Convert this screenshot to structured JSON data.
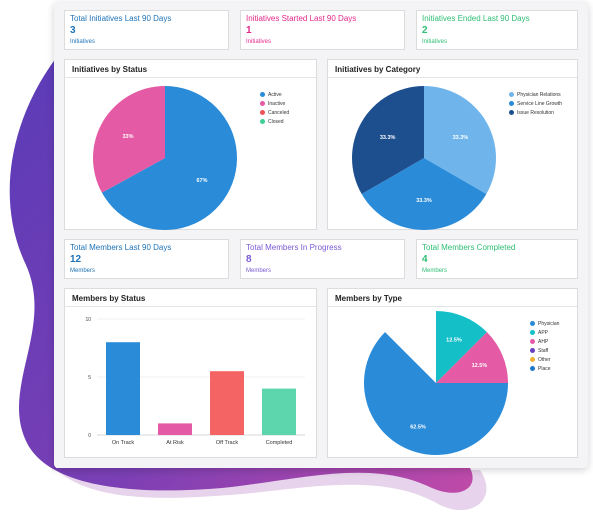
{
  "kpis_top": [
    {
      "title": "Total Initiatives Last 90 Days",
      "value": "3",
      "sub": "Initiatives",
      "color": "#1f73b7"
    },
    {
      "title": "Initiatives Started Last 90 Days",
      "value": "1",
      "sub": "Initiatives",
      "color": "#e3278a"
    },
    {
      "title": "Initiatives Ended Last 90 Days",
      "value": "2",
      "sub": "Initiatives",
      "color": "#2ebd74"
    }
  ],
  "kpis_mid": [
    {
      "title": "Total Members Last 90 Days",
      "value": "12",
      "sub": "Members",
      "color": "#1f73b7"
    },
    {
      "title": "Total Members In Progress",
      "value": "8",
      "sub": "Members",
      "color": "#7a5bd6"
    },
    {
      "title": "Total Members Completed",
      "value": "4",
      "sub": "Members",
      "color": "#2ebd74"
    }
  ],
  "status_chart": {
    "title": "Initiatives by Status",
    "legend": [
      {
        "label": "Active",
        "color": "#2a8bd8"
      },
      {
        "label": "Inactive",
        "color": "#e45aa4"
      },
      {
        "label": "Canceled",
        "color": "#f0505a"
      },
      {
        "label": "Closed",
        "color": "#3ecf95"
      }
    ]
  },
  "category_chart": {
    "title": "Initiatives by Category",
    "legend": [
      {
        "label": "Physician Relations",
        "color": "#6fb5ec"
      },
      {
        "label": "Service Line Growth",
        "color": "#2a8bd8"
      },
      {
        "label": "Issue Resolution",
        "color": "#1d4f8f"
      }
    ]
  },
  "members_status_chart": {
    "title": "Members by Status"
  },
  "members_type_chart": {
    "title": "Members by Type",
    "legend": [
      {
        "label": "Physician",
        "color": "#2a8bd8"
      },
      {
        "label": "APP",
        "color": "#14bfc8"
      },
      {
        "label": "AHP",
        "color": "#e45aa4"
      },
      {
        "label": "Staff",
        "color": "#6a3fc2"
      },
      {
        "label": "Other",
        "color": "#f2b135"
      },
      {
        "label": "Place",
        "color": "#1f78c8"
      }
    ]
  },
  "chart_data": [
    {
      "type": "pie",
      "title": "Initiatives by Status",
      "slices": [
        {
          "label": "Active",
          "value": 67,
          "display": "67%",
          "color": "#2a8bd8"
        },
        {
          "label": "Inactive",
          "value": 33,
          "display": "33%",
          "color": "#e45aa4"
        }
      ]
    },
    {
      "type": "pie",
      "title": "Initiatives by Category",
      "slices": [
        {
          "label": "Physician Relations",
          "value": 33.3,
          "display": "33.3%",
          "color": "#6fb5ec"
        },
        {
          "label": "Service Line Growth",
          "value": 33.3,
          "display": "33.3%",
          "color": "#2a8bd8"
        },
        {
          "label": "Issue Resolution",
          "value": 33.3,
          "display": "33.3%",
          "color": "#1d4f8f"
        }
      ]
    },
    {
      "type": "bar",
      "title": "Members by Status",
      "categories": [
        "On Track",
        "At Risk",
        "Off Track",
        "Completed"
      ],
      "values": [
        8,
        1,
        5.5,
        4
      ],
      "colors": [
        "#2a8bd8",
        "#e45aa4",
        "#f56464",
        "#5ed6ad"
      ],
      "ylim": [
        0,
        10
      ],
      "yticks": [
        0,
        5,
        10
      ]
    },
    {
      "type": "pie",
      "title": "Members by Type",
      "slices": [
        {
          "label": "Physician",
          "value": 62.5,
          "display": "62.5%",
          "color": "#2a8bd8"
        },
        {
          "label": "APP",
          "value": 12.5,
          "display": "12.5%",
          "color": "#14bfc8"
        },
        {
          "label": "AHP",
          "value": 12.5,
          "display": "12.5%",
          "color": "#e45aa4"
        },
        {
          "label": "Place",
          "value": 12.5,
          "display": "12.5%",
          "color": "#1f78c8"
        }
      ]
    }
  ]
}
